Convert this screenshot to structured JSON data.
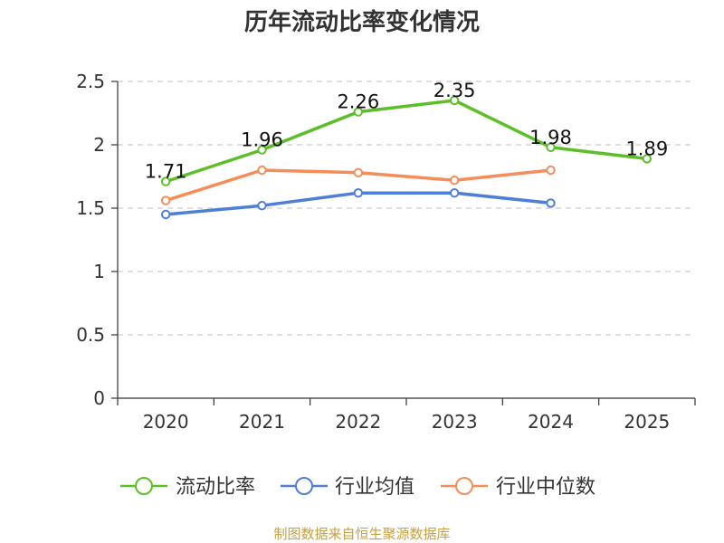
{
  "chart_data": {
    "type": "line",
    "title": "历年流动比率变化情况",
    "categories": [
      "2020",
      "2021",
      "2022",
      "2023",
      "2024",
      "2025"
    ],
    "y_ticks": [
      "0",
      "0.5",
      "1",
      "1.5",
      "2",
      "2.5"
    ],
    "ylim": [
      0,
      2.5
    ],
    "grid": true,
    "legend_position": "bottom",
    "series": [
      {
        "name": "流动比率",
        "color": "#5cbf2a",
        "values": [
          1.71,
          1.96,
          2.26,
          2.35,
          1.98,
          1.89
        ],
        "labels": [
          "1.71",
          "1.96",
          "2.26",
          "2.35",
          "1.98",
          "1.89"
        ]
      },
      {
        "name": "行业均值",
        "color": "#4d7fd9",
        "values": [
          1.45,
          1.52,
          1.62,
          1.62,
          1.54,
          null
        ]
      },
      {
        "name": "行业中位数",
        "color": "#f58d59",
        "values": [
          1.56,
          1.8,
          1.78,
          1.72,
          1.8,
          null
        ]
      }
    ]
  },
  "footer": {
    "source": "制图数据来自恒生聚源数据库"
  }
}
